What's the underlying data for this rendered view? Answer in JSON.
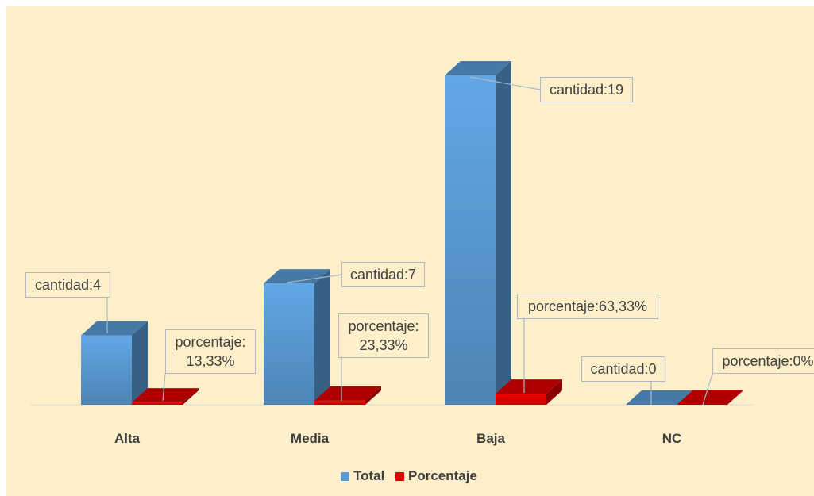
{
  "chart_data": {
    "type": "bar3d",
    "categories": [
      "Alta",
      "Media",
      "Baja",
      "NC"
    ],
    "series": [
      {
        "name": "Total",
        "color": "#5b9bd5",
        "values": [
          4,
          7,
          19,
          0
        ],
        "value_labels": [
          "cantidad:4",
          "cantidad:7",
          "cantidad:19",
          "cantidad:0"
        ]
      },
      {
        "name": "Porcentaje",
        "color": "#e00000",
        "values": [
          0.1333,
          0.2333,
          0.6333,
          0
        ],
        "value_labels": [
          "porcentaje: 13,33%",
          "porcentaje: 23,33%",
          "porcentaje:63,33%",
          "porcentaje:0%"
        ]
      }
    ],
    "legend": "bottom"
  }
}
